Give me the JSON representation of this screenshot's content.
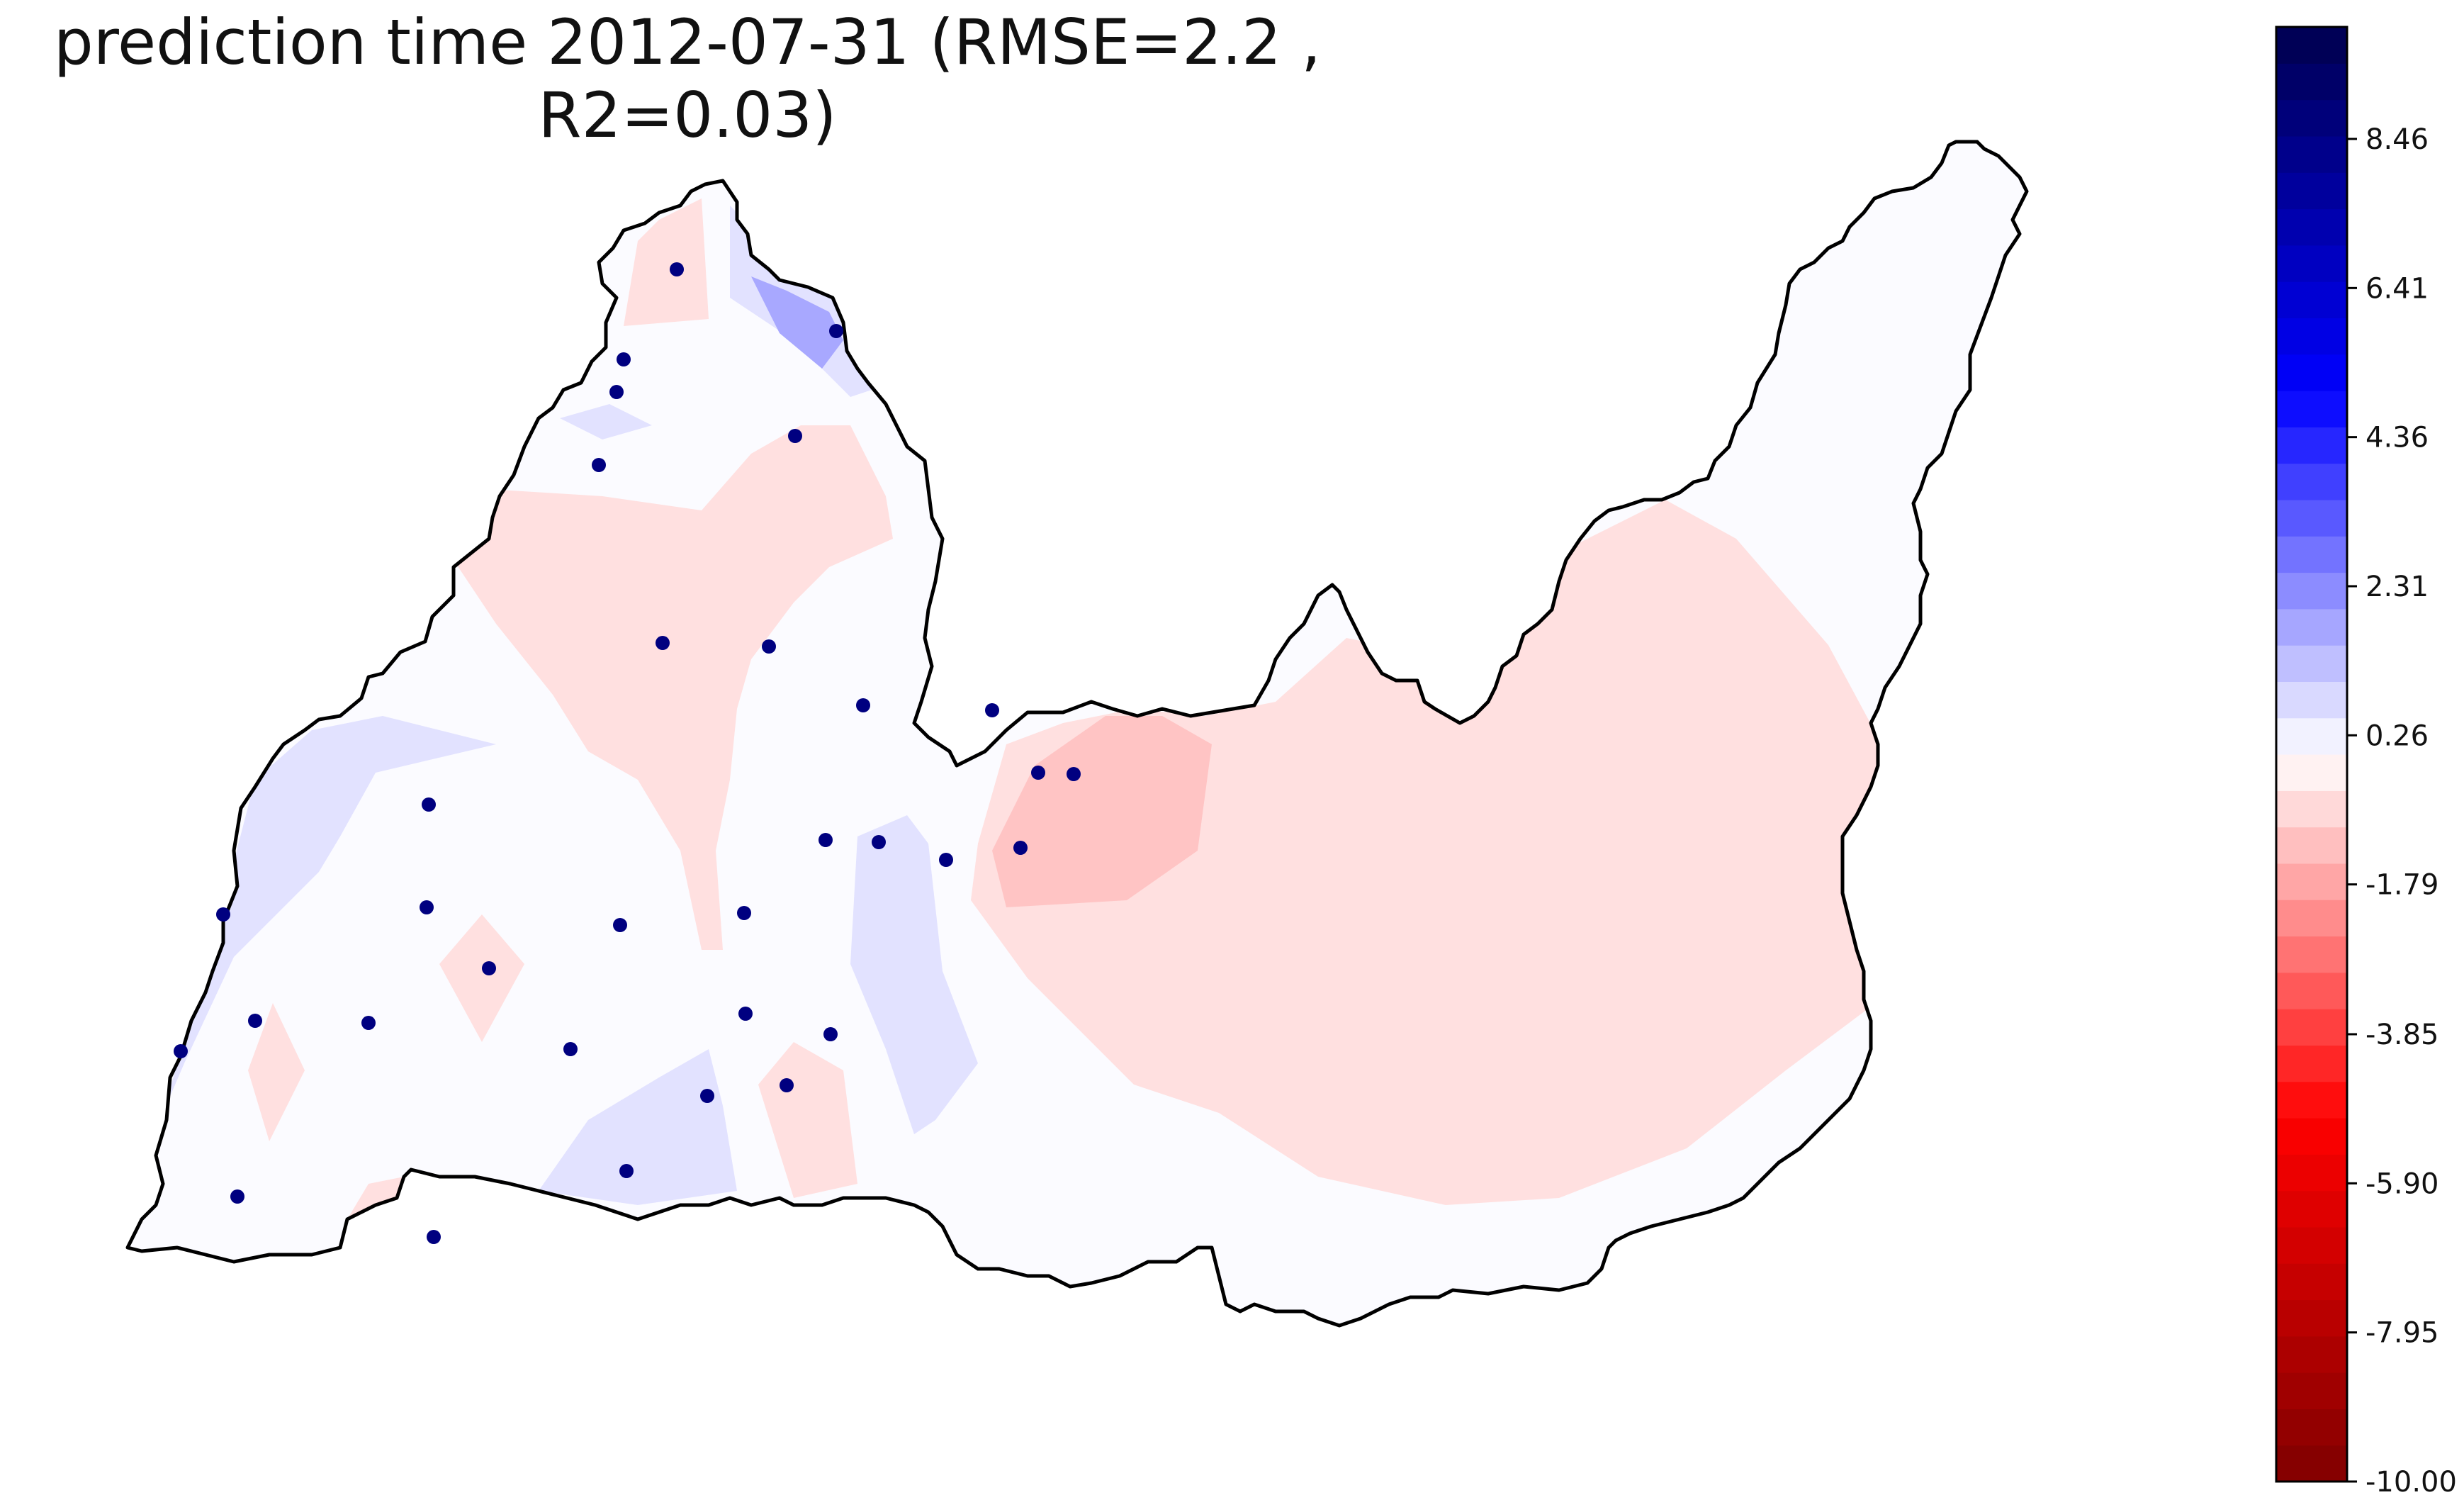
{
  "title": "prediction time 2012-07-31 (RMSE=2.2 , R2=0.03)",
  "colorbar": {
    "min": -10.0,
    "max": 10.0,
    "levels": 40,
    "colormap": "seismic_r",
    "tick_labels": [
      "8.46",
      "6.41",
      "4.36",
      "2.31",
      "0.26",
      "-1.79",
      "-3.85",
      "-5.90",
      "-7.95",
      "-10.00"
    ],
    "tick_values": [
      8.46,
      6.41,
      4.36,
      2.31,
      0.26,
      -1.79,
      -3.85,
      -5.9,
      -7.95,
      -10.0
    ]
  },
  "colors": {
    "station_marker": "#000080",
    "boundary": "#000000",
    "background_field": "#fbfbff",
    "light_red": "#ffe0e0",
    "medium_red": "#ffc4c4",
    "light_blue": "#e2e2ff",
    "medium_blue": "#a8a8ff"
  },
  "station_count": 32
}
